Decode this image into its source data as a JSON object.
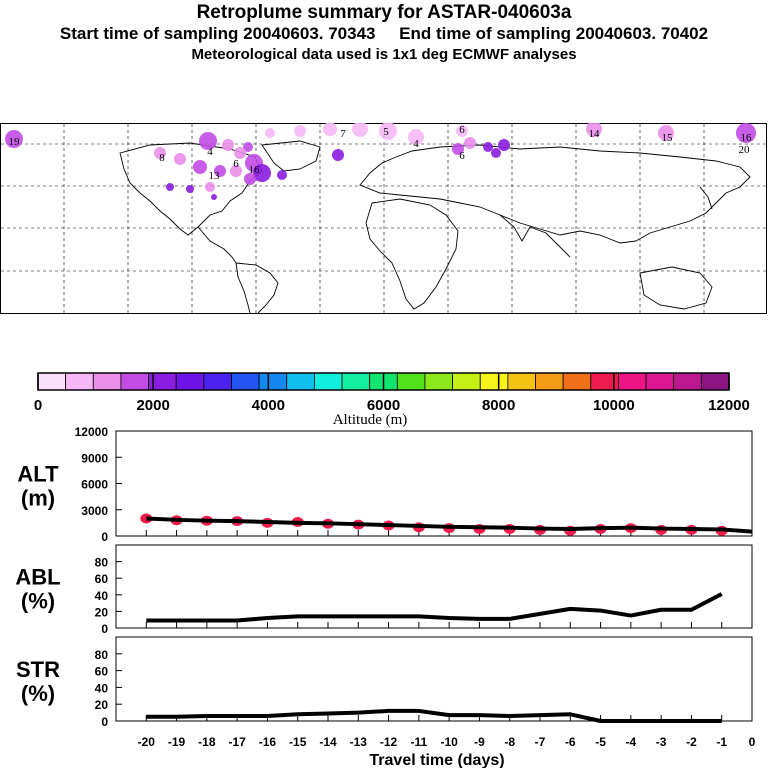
{
  "header": {
    "title": "Retroplume summary for ASTAR-040603a",
    "sampling_line": "Start time of sampling 20040603. 70343     End time of sampling 20040603. 70402",
    "met_line": "Meteorological data used is 1x1 deg ECMWF analyses"
  },
  "map": {
    "plume_labels": [
      "19",
      "7",
      "5",
      "6",
      "4",
      "14",
      "15",
      "16",
      "20",
      "6",
      "16",
      "8",
      "13",
      "4",
      "6"
    ]
  },
  "colorbar": {
    "colors": [
      "#fbe0fb",
      "#f6b8f6",
      "#e98ee9",
      "#c24ce4",
      "#8a1de0",
      "#6f14e6",
      "#4a21ee",
      "#2355f2",
      "#1288f0",
      "#11c0ee",
      "#12eedd",
      "#12eda0",
      "#12e470",
      "#52e21a",
      "#8ce818",
      "#c6ef18",
      "#f6f418",
      "#f5c412",
      "#f49c14",
      "#f2701a",
      "#ee1c4c",
      "#ee1485",
      "#db1690",
      "#be1890",
      "#8e1684"
    ],
    "tick_labels": [
      "0",
      "2000",
      "4000",
      "6000",
      "8000",
      "10000",
      "12000"
    ],
    "label": "Altitude (m)"
  },
  "chart_data": [
    {
      "type": "line",
      "name": "ALT",
      "ylabel": "ALT\n(m)",
      "ylabel_line1": "ALT",
      "ylabel_line2": "(m)",
      "ylim": [
        0,
        12000
      ],
      "yticks": [
        0,
        3000,
        6000,
        9000,
        12000
      ],
      "ytick_labels": [
        "0",
        "3000",
        "6000",
        "9000",
        "12000"
      ],
      "x": [
        -20,
        -19,
        -18,
        -17,
        -16,
        -15,
        -14,
        -13,
        -12,
        -11,
        -10,
        -9,
        -8,
        -7,
        -6,
        -5,
        -4,
        -3,
        -2,
        -1,
        0
      ],
      "values": [
        2000,
        1850,
        1750,
        1700,
        1600,
        1500,
        1450,
        1350,
        1250,
        1150,
        1050,
        1000,
        950,
        850,
        800,
        900,
        950,
        850,
        800,
        750,
        500
      ],
      "markers_x": [
        -20,
        -19,
        -18,
        -17,
        -16,
        -15,
        -14,
        -13,
        -12,
        -11,
        -10,
        -9,
        -8,
        -7,
        -6,
        -5,
        -4,
        -3,
        -2,
        -1
      ],
      "markers_y": [
        2000,
        1800,
        1750,
        1700,
        1500,
        1600,
        1400,
        1300,
        1200,
        1000,
        900,
        800,
        800,
        700,
        600,
        800,
        900,
        700,
        700,
        600
      ],
      "marker_color": "#ee1c4c"
    },
    {
      "type": "line",
      "name": "ABL",
      "ylabel_line1": "ABL",
      "ylabel_line2": "(%)",
      "ylim": [
        0,
        100
      ],
      "yticks": [
        0,
        20,
        40,
        60,
        80
      ],
      "ytick_labels": [
        "0",
        "20",
        "40",
        "60",
        "80"
      ],
      "x": [
        -20,
        -19,
        -18,
        -17,
        -16,
        -15,
        -14,
        -13,
        -12,
        -11,
        -10,
        -9,
        -8,
        -7,
        -6,
        -5,
        -4,
        -3,
        -2,
        -1
      ],
      "values": [
        9,
        9,
        9,
        9,
        12,
        14,
        14,
        14,
        14,
        14,
        12,
        11,
        11,
        17,
        23,
        21,
        15,
        22,
        22,
        41
      ]
    },
    {
      "type": "line",
      "name": "STR",
      "ylabel_line1": "STR",
      "ylabel_line2": "(%)",
      "ylim": [
        0,
        100
      ],
      "yticks": [
        0,
        20,
        40,
        60,
        80
      ],
      "ytick_labels": [
        "0",
        "20",
        "40",
        "60",
        "80"
      ],
      "x": [
        -20,
        -19,
        -18,
        -17,
        -16,
        -15,
        -14,
        -13,
        -12,
        -11,
        -10,
        -9,
        -8,
        -7,
        -6,
        -5,
        -4,
        -3,
        -2,
        -1
      ],
      "values": [
        5,
        5,
        6,
        6,
        6,
        8,
        9,
        10,
        12,
        12,
        7,
        7,
        6,
        7,
        8,
        0,
        0,
        0,
        0,
        0
      ],
      "xlabel": "Travel time (days)",
      "xtick_labels": [
        "-20",
        "-19",
        "-18",
        "-17",
        "-16",
        "-15",
        "-14",
        "-13",
        "-12",
        "-11",
        "-10",
        "-9",
        "-8",
        "-7",
        "-6",
        "-5",
        "-4",
        "-3",
        "-2",
        "-1",
        "0"
      ]
    }
  ]
}
